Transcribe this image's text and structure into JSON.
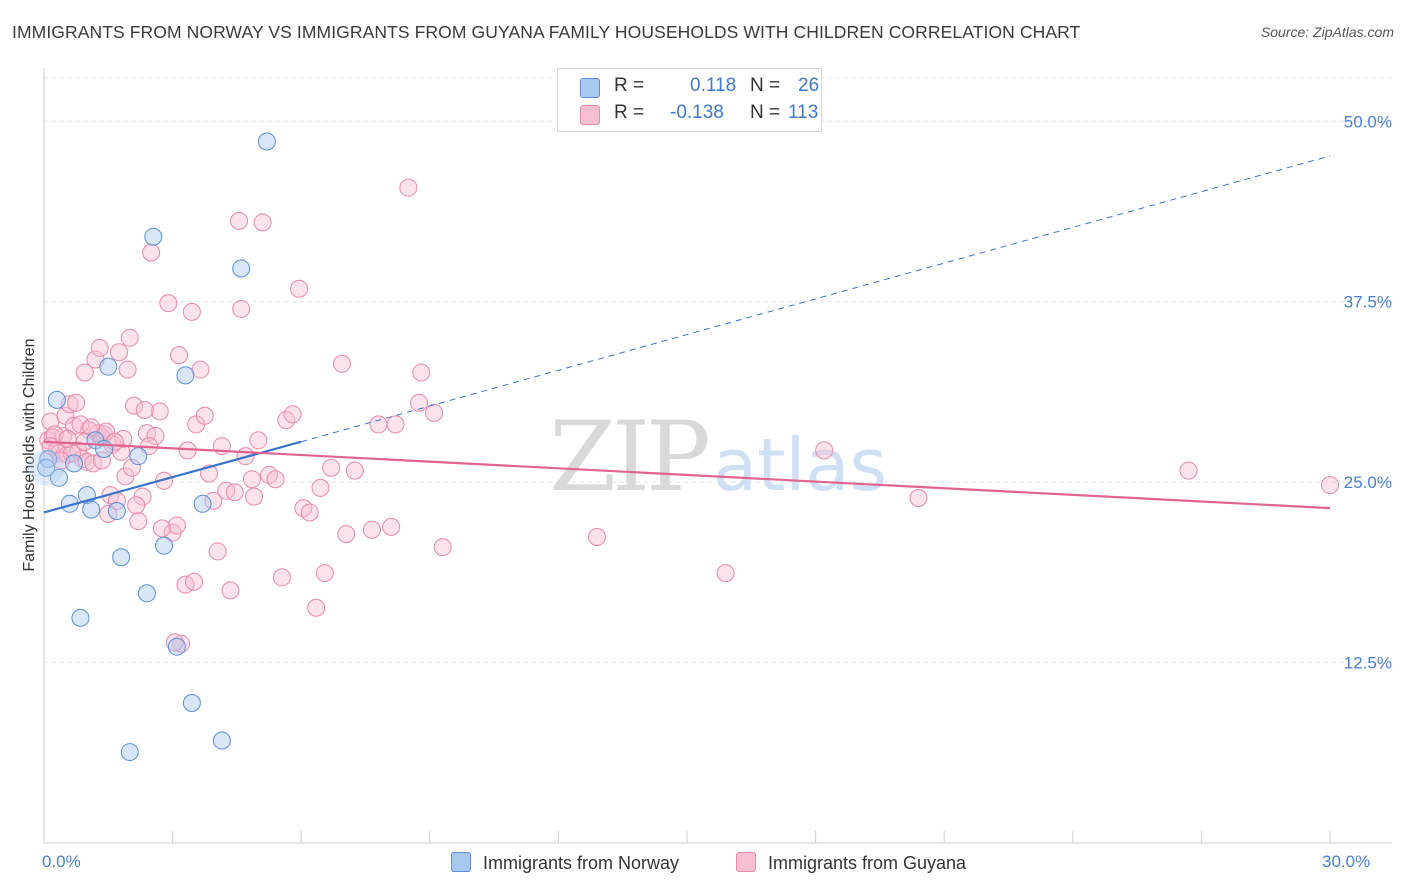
{
  "title": "IMMIGRANTS FROM NORWAY VS IMMIGRANTS FROM GUYANA FAMILY HOUSEHOLDS WITH CHILDREN CORRELATION CHART",
  "source": "Source: ZipAtlas.com",
  "watermark": {
    "zip": "ZIP",
    "atlas": "atlas"
  },
  "legend": {
    "norway": {
      "r_label": "R =",
      "r_value": "0.118",
      "n_label": "N =",
      "n_value": "26"
    },
    "guyana": {
      "r_label": "R =",
      "r_value": "-0.138",
      "n_label": "N =",
      "n_value": "113"
    }
  },
  "colors": {
    "norway_fill": "#a9c8f0",
    "norway_stroke": "#5b8fd6",
    "norway_line": "#3b74cc",
    "guyana_fill": "#f7bfd2",
    "guyana_stroke": "#e88aab",
    "guyana_line": "#e0648f",
    "grid": "#e4e4e4",
    "accent_text": "#4a7fd0"
  },
  "chart_data": {
    "type": "scatter",
    "title": "IMMIGRANTS FROM NORWAY VS IMMIGRANTS FROM GUYANA FAMILY HOUSEHOLDS WITH CHILDREN CORRELATION CHART",
    "xlabel": "",
    "ylabel": "Family Households with Children",
    "xlim": [
      0,
      30
    ],
    "ylim": [
      0,
      53
    ],
    "x_tick_labels": {
      "min": "0.0%",
      "max": "30.0%"
    },
    "y_ticks": [
      12.5,
      25.0,
      37.5,
      50.0
    ],
    "y_tick_labels": [
      "12.5%",
      "25.0%",
      "37.5%",
      "50.0%"
    ],
    "grid": true,
    "legend_position": "top-center",
    "series": [
      {
        "name": "Immigrants from Norway",
        "r": 0.118,
        "n": 26,
        "trend": {
          "x0": 0,
          "y0": 22.9,
          "x1": 6.0,
          "y1": 27.8,
          "extend_dashed_to_x": 30,
          "extend_y": 47.6
        },
        "points": [
          [
            0.1,
            26.6
          ],
          [
            0.3,
            30.7
          ],
          [
            0.35,
            25.3
          ],
          [
            0.6,
            23.5
          ],
          [
            0.7,
            26.3
          ],
          [
            0.85,
            15.6
          ],
          [
            1.0,
            24.1
          ],
          [
            1.1,
            23.1
          ],
          [
            1.2,
            27.9
          ],
          [
            1.4,
            27.3
          ],
          [
            1.5,
            33.0
          ],
          [
            1.7,
            23.0
          ],
          [
            1.8,
            19.8
          ],
          [
            2.0,
            6.3
          ],
          [
            2.2,
            26.8
          ],
          [
            2.4,
            17.3
          ],
          [
            2.55,
            42.0
          ],
          [
            2.8,
            20.6
          ],
          [
            3.1,
            13.6
          ],
          [
            3.3,
            32.4
          ],
          [
            3.45,
            9.7
          ],
          [
            3.7,
            23.5
          ],
          [
            4.15,
            7.1
          ],
          [
            4.6,
            39.8
          ],
          [
            5.2,
            48.6
          ],
          [
            0.05,
            26.0
          ]
        ]
      },
      {
        "name": "Immigrants from Guyana",
        "r": -0.138,
        "n": 113,
        "trend": {
          "x0": 0,
          "y0": 27.8,
          "x1": 30,
          "y1": 23.2
        },
        "points": [
          [
            0.1,
            27.9
          ],
          [
            0.15,
            29.2
          ],
          [
            0.2,
            28.1
          ],
          [
            0.3,
            27.2
          ],
          [
            0.35,
            27.0
          ],
          [
            0.45,
            28.2
          ],
          [
            0.5,
            29.6
          ],
          [
            0.55,
            26.9
          ],
          [
            0.6,
            30.4
          ],
          [
            0.7,
            28.9
          ],
          [
            0.75,
            30.5
          ],
          [
            0.8,
            27.2
          ],
          [
            0.9,
            26.6
          ],
          [
            0.95,
            32.6
          ],
          [
            1.0,
            26.4
          ],
          [
            1.05,
            28.6
          ],
          [
            1.15,
            26.3
          ],
          [
            1.2,
            33.5
          ],
          [
            1.25,
            28.4
          ],
          [
            1.3,
            34.3
          ],
          [
            1.35,
            28.1
          ],
          [
            1.4,
            28.3
          ],
          [
            1.5,
            22.8
          ],
          [
            1.55,
            24.1
          ],
          [
            1.6,
            27.6
          ],
          [
            1.7,
            23.7
          ],
          [
            1.75,
            34.0
          ],
          [
            1.8,
            27.1
          ],
          [
            1.9,
            25.4
          ],
          [
            1.95,
            32.8
          ],
          [
            2.0,
            35.0
          ],
          [
            2.1,
            30.3
          ],
          [
            2.2,
            22.3
          ],
          [
            2.3,
            24.0
          ],
          [
            2.4,
            28.4
          ],
          [
            2.5,
            40.9
          ],
          [
            2.6,
            28.2
          ],
          [
            2.7,
            29.9
          ],
          [
            2.8,
            25.1
          ],
          [
            2.9,
            37.4
          ],
          [
            3.0,
            21.5
          ],
          [
            3.1,
            22.0
          ],
          [
            3.15,
            33.8
          ],
          [
            3.2,
            13.8
          ],
          [
            3.3,
            17.9
          ],
          [
            3.35,
            27.2
          ],
          [
            3.45,
            36.8
          ],
          [
            3.55,
            29.0
          ],
          [
            3.65,
            32.8
          ],
          [
            3.75,
            29.6
          ],
          [
            3.85,
            25.6
          ],
          [
            3.95,
            23.7
          ],
          [
            4.05,
            20.2
          ],
          [
            4.15,
            27.5
          ],
          [
            4.25,
            24.4
          ],
          [
            4.35,
            17.5
          ],
          [
            4.45,
            24.3
          ],
          [
            4.55,
            43.1
          ],
          [
            4.6,
            37.0
          ],
          [
            4.7,
            26.8
          ],
          [
            4.85,
            25.2
          ],
          [
            5.0,
            27.9
          ],
          [
            5.1,
            43.0
          ],
          [
            5.25,
            25.5
          ],
          [
            5.4,
            25.2
          ],
          [
            5.55,
            18.4
          ],
          [
            5.65,
            29.3
          ],
          [
            5.8,
            29.7
          ],
          [
            5.95,
            38.4
          ],
          [
            6.05,
            23.2
          ],
          [
            6.2,
            22.9
          ],
          [
            6.35,
            16.3
          ],
          [
            6.45,
            24.6
          ],
          [
            6.55,
            18.7
          ],
          [
            6.95,
            33.2
          ],
          [
            7.05,
            21.4
          ],
          [
            7.25,
            25.8
          ],
          [
            7.65,
            21.7
          ],
          [
            7.8,
            29.0
          ],
          [
            8.1,
            21.9
          ],
          [
            8.2,
            29.0
          ],
          [
            8.5,
            45.4
          ],
          [
            8.75,
            30.5
          ],
          [
            8.8,
            32.6
          ],
          [
            9.1,
            29.8
          ],
          [
            9.3,
            20.5
          ],
          [
            12.9,
            21.2
          ],
          [
            15.9,
            18.7
          ],
          [
            18.2,
            27.2
          ],
          [
            20.4,
            23.9
          ],
          [
            26.7,
            25.8
          ],
          [
            30.0,
            24.8
          ],
          [
            0.25,
            28.3
          ],
          [
            0.65,
            27.0
          ],
          [
            1.85,
            28.0
          ],
          [
            2.35,
            30.0
          ],
          [
            0.4,
            26.5
          ],
          [
            1.45,
            28.5
          ],
          [
            2.75,
            21.8
          ],
          [
            3.05,
            13.9
          ],
          [
            0.85,
            29.0
          ],
          [
            1.65,
            27.8
          ],
          [
            0.55,
            28.0
          ],
          [
            2.05,
            26.0
          ],
          [
            1.1,
            28.8
          ],
          [
            0.15,
            27.5
          ],
          [
            2.15,
            23.4
          ],
          [
            3.5,
            18.1
          ],
          [
            4.9,
            24.0
          ],
          [
            0.95,
            27.8
          ],
          [
            1.35,
            26.5
          ],
          [
            2.45,
            27.5
          ],
          [
            6.7,
            26.0
          ]
        ]
      }
    ]
  },
  "bottom_legend": {
    "norway": "Immigrants from Norway",
    "guyana": "Immigrants from Guyana"
  }
}
